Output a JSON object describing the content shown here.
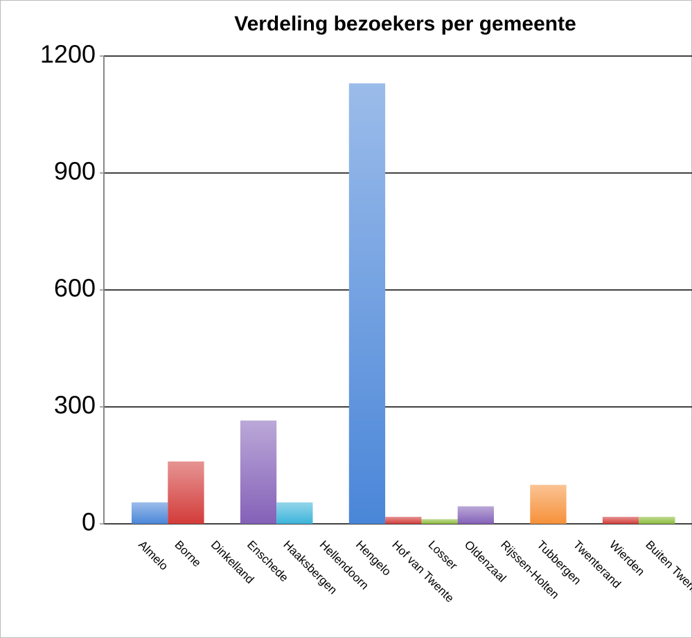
{
  "chart_data": {
    "type": "bar",
    "title": "Verdeling bezoekers per gemeente",
    "categories": [
      "Almelo",
      "Borne",
      "Dinkelland",
      "Enschede",
      "Haaksbergen",
      "Hellendoorn",
      "Hengelo",
      "Hof van Twente",
      "Losser",
      "Oldenzaal",
      "Rijssen-Holten",
      "Tubbergen",
      "Twenterand",
      "Wierden",
      "Buiten Twente"
    ],
    "values": [
      55,
      160,
      0,
      265,
      55,
      0,
      1130,
      18,
      12,
      45,
      0,
      100,
      0,
      18,
      18
    ],
    "colors": [
      "#4a86d8",
      "#d23c3a",
      "#8cbc3c",
      "#8461b8",
      "#3cb4da",
      "#f6913a",
      "#4a86d8",
      "#d23c3a",
      "#8cbc3c",
      "#8461b8",
      "#3cb4da",
      "#f6913a",
      "#4a86d8",
      "#d23c3a",
      "#8cbc3c"
    ],
    "ylim": [
      0,
      1200
    ],
    "yticks": [
      0,
      300,
      600,
      900,
      1200
    ],
    "grid": true
  }
}
